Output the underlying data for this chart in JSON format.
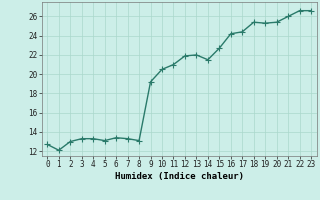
{
  "x": [
    0,
    1,
    2,
    3,
    4,
    5,
    6,
    7,
    8,
    9,
    10,
    11,
    12,
    13,
    14,
    15,
    16,
    17,
    18,
    19,
    20,
    21,
    22,
    23
  ],
  "y": [
    12.7,
    12.1,
    13.0,
    13.3,
    13.3,
    13.1,
    13.4,
    13.3,
    13.1,
    19.2,
    20.5,
    21.0,
    21.9,
    22.0,
    21.5,
    22.7,
    24.2,
    24.4,
    25.4,
    25.3,
    25.4,
    26.0,
    26.6,
    26.6
  ],
  "line_color": "#2a7a6a",
  "marker": "+",
  "marker_size": 4,
  "bg_color": "#cceee8",
  "grid_color": "#aad8cc",
  "xlabel": "Humidex (Indice chaleur)",
  "xlim": [
    -0.5,
    23.5
  ],
  "ylim": [
    11.5,
    27.5
  ],
  "yticks": [
    12,
    14,
    16,
    18,
    20,
    22,
    24,
    26
  ],
  "xticks": [
    0,
    1,
    2,
    3,
    4,
    5,
    6,
    7,
    8,
    9,
    10,
    11,
    12,
    13,
    14,
    15,
    16,
    17,
    18,
    19,
    20,
    21,
    22,
    23
  ],
  "tick_fontsize": 5.5,
  "xlabel_fontsize": 6.5,
  "line_width": 1.0,
  "marker_edge_width": 0.8
}
